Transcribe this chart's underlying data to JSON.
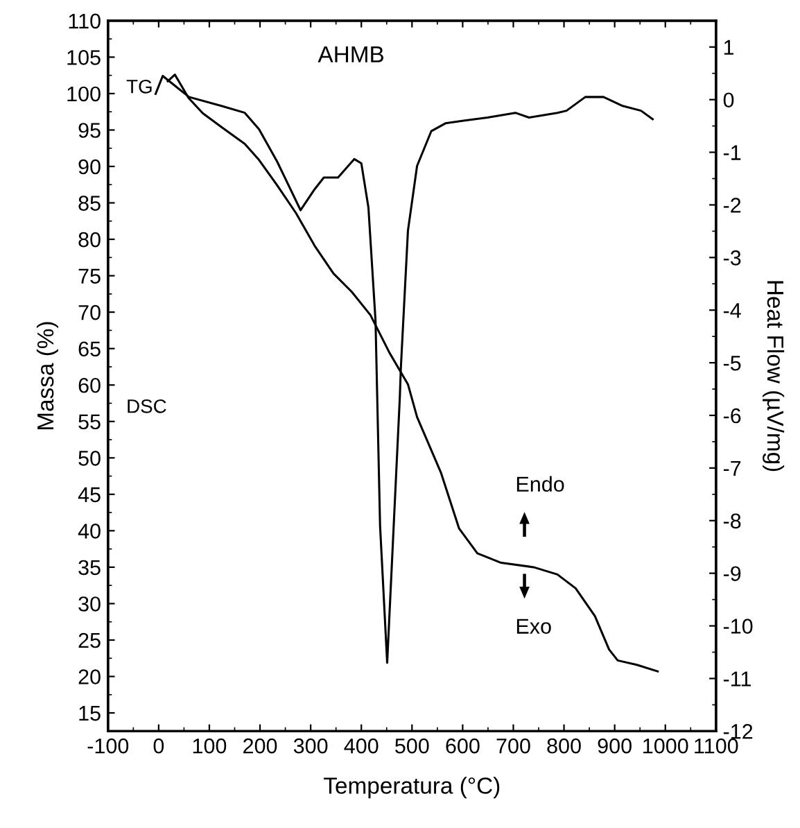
{
  "chart_data": {
    "type": "line",
    "title": "AHMB",
    "xlabel": "Temperatura (°C)",
    "ylabel": "Massa (%)",
    "y2label": "Heat Flow (µV/mg)",
    "xlim": [
      -100,
      1100
    ],
    "xticks": [
      -100,
      0,
      100,
      200,
      300,
      400,
      500,
      600,
      700,
      800,
      900,
      1000,
      1100
    ],
    "ylim": [
      12.5,
      110
    ],
    "yticks": [
      15,
      20,
      25,
      30,
      35,
      40,
      45,
      50,
      55,
      60,
      65,
      70,
      75,
      80,
      85,
      90,
      95,
      100,
      105,
      110
    ],
    "y2lim": [
      -12,
      1.5
    ],
    "y2ticks": [
      -12,
      -11,
      -10,
      -9,
      -8,
      -7,
      -6,
      -5,
      -4,
      -3,
      -2,
      -1,
      0,
      1
    ],
    "series": [
      {
        "color": "#000000",
        "x": [
          18,
          32,
          59,
          87,
          124,
          170,
          198,
          234,
          271,
          308,
          345,
          381,
          418,
          455,
          492,
          510,
          557,
          593,
          629,
          676,
          740,
          787,
          823,
          861,
          889,
          906,
          944,
          985
        ],
        "values": [
          101.7,
          102.6,
          99.4,
          97.3,
          95.4,
          93.1,
          90.9,
          87.4,
          83.6,
          79.1,
          75.3,
          72.8,
          69.6,
          64.5,
          60.1,
          55.6,
          48,
          40.3,
          36.9,
          35.6,
          35,
          34,
          32.1,
          28.3,
          23.7,
          22.2,
          21.6,
          20.7
        ]
      },
      {
        "color": "#000000",
        "axis": "y2",
        "x": [
          -6,
          8,
          60,
          124,
          170,
          198,
          234,
          280,
          308,
          326,
          354,
          386,
          400,
          414,
          428,
          437,
          451,
          476,
          478,
          492,
          510,
          538,
          566,
          602,
          649,
          704,
          731,
          787,
          805,
          842,
          878,
          916,
          952,
          975
        ],
        "values": [
          0.11,
          0.45,
          0.05,
          -0.12,
          -0.25,
          -0.56,
          -1.18,
          -2.1,
          -1.7,
          -1.48,
          -1.48,
          -1.13,
          -1.21,
          -2.05,
          -4.2,
          -8.1,
          -10.7,
          -5.65,
          -5.1,
          -2.49,
          -1.26,
          -0.6,
          -0.45,
          -0.4,
          -0.34,
          -0.25,
          -0.34,
          -0.25,
          -0.21,
          0.05,
          0.05,
          -0.12,
          -0.21,
          -0.37
        ]
      }
    ],
    "annotations": [
      "TG",
      "DSC",
      "Endo",
      "Exo"
    ],
    "grid": false,
    "legend": false,
    "marker": "none",
    "line_style": "solid"
  }
}
